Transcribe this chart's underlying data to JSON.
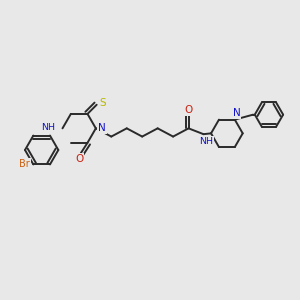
{
  "bg_color": "#e8e8e8",
  "bond_color": "#2a2a2a",
  "N_color": "#1010cc",
  "O_color": "#cc2010",
  "S_color": "#b8b800",
  "Br_color": "#cc6010",
  "NH_color": "#1010cc",
  "bond_width": 1.4,
  "fig_size": [
    3.0,
    3.0
  ],
  "dpi": 100,
  "xlim": [
    0,
    18
  ],
  "ylim": [
    0,
    18
  ]
}
